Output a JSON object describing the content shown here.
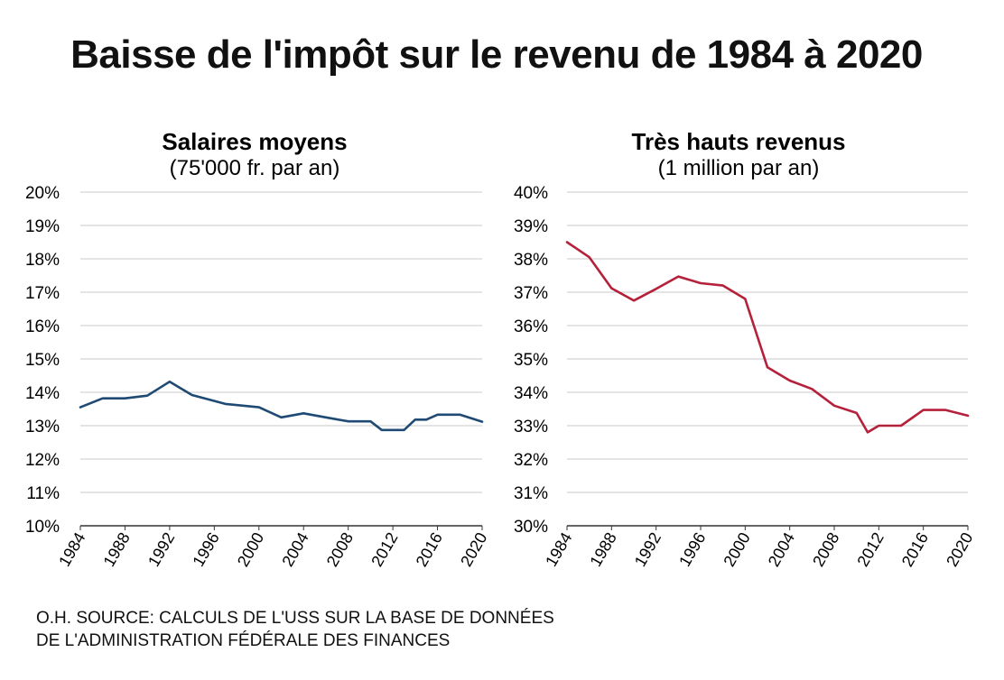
{
  "title": "Baisse de l'impôt sur le revenu de 1984 à 2020",
  "source": {
    "line1": "O.H. SOURCE: CALCULS DE L'USS SUR LA BASE DE DONNÉES",
    "line2": "DE L'ADMINISTRATION FÉDÉRALE DES FINANCES"
  },
  "colors": {
    "left_series": "#1f4a73",
    "right_series": "#b5203a",
    "grid": "#c8c8c8"
  },
  "chart_data": [
    {
      "type": "line",
      "title": "Salaires moyens",
      "subtitle": "(75'000 fr. par an)",
      "xlabel": "",
      "ylabel": "",
      "ylim": [
        10,
        20
      ],
      "xlim": [
        1984,
        2020
      ],
      "yticks": [
        "20%",
        "19%",
        "18%",
        "17%",
        "16%",
        "15%",
        "14%",
        "13%",
        "12%",
        "11%",
        "10%"
      ],
      "xticks": [
        "1984",
        "1988",
        "1992",
        "1996",
        "2000",
        "2004",
        "2008",
        "2012",
        "2016",
        "2020"
      ],
      "grid": true,
      "series": [
        {
          "name": "Salaires moyens",
          "x": [
            1984,
            1986,
            1988,
            1990,
            1992,
            1994,
            1997,
            2000,
            2002,
            2004,
            2006,
            2008,
            2010,
            2011,
            2013,
            2014,
            2015,
            2016,
            2018,
            2020
          ],
          "values": [
            13.55,
            13.82,
            13.82,
            13.9,
            14.32,
            13.92,
            13.65,
            13.55,
            13.25,
            13.37,
            13.25,
            13.13,
            13.13,
            12.87,
            12.87,
            13.18,
            13.18,
            13.33,
            13.33,
            13.12
          ]
        }
      ]
    },
    {
      "type": "line",
      "title": "Très hauts revenus",
      "subtitle": "(1 million par an)",
      "xlabel": "",
      "ylabel": "",
      "ylim": [
        30,
        40
      ],
      "xlim": [
        1984,
        2020
      ],
      "yticks": [
        "40%",
        "39%",
        "38%",
        "37%",
        "36%",
        "35%",
        "34%",
        "33%",
        "32%",
        "31%",
        "30%"
      ],
      "xticks": [
        "1984",
        "1988",
        "1992",
        "1996",
        "2000",
        "2004",
        "2008",
        "2012",
        "2016",
        "2020"
      ],
      "grid": true,
      "series": [
        {
          "name": "Très hauts revenus",
          "x": [
            1984,
            1986,
            1988,
            1990,
            1992,
            1994,
            1996,
            1998,
            2000,
            2002,
            2004,
            2006,
            2008,
            2010,
            2011,
            2012,
            2014,
            2016,
            2018,
            2020
          ],
          "values": [
            38.5,
            38.05,
            37.12,
            36.75,
            37.1,
            37.47,
            37.27,
            37.2,
            36.8,
            34.75,
            34.35,
            34.1,
            33.6,
            33.38,
            32.8,
            33.0,
            33.0,
            33.47,
            33.47,
            33.3
          ]
        }
      ]
    }
  ]
}
